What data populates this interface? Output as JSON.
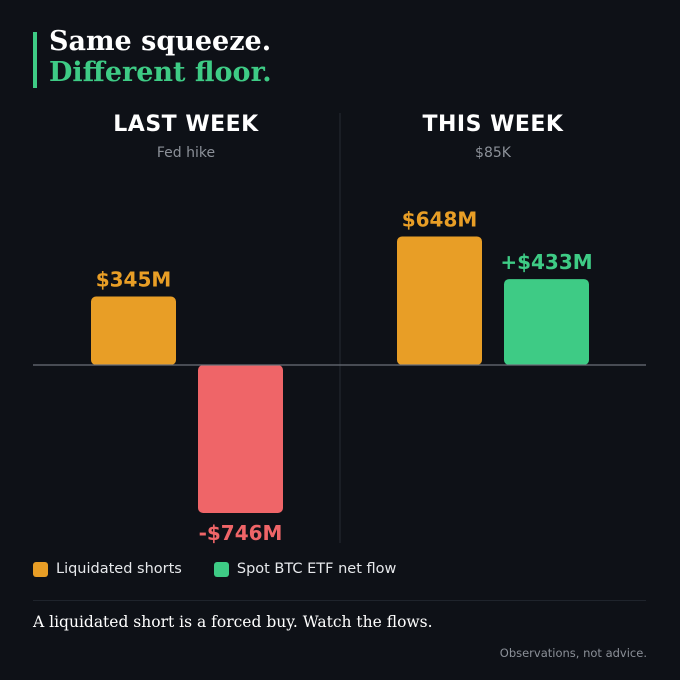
{
  "header": {
    "title_line1": "Same squeeze.",
    "title_line2": "Different floor."
  },
  "colors": {
    "background": "#0e1117",
    "liquidated_shorts": "#e89e26",
    "etf_inflow": "#3ecb85",
    "etf_outflow": "#ef6568",
    "accent": "#3ecb85"
  },
  "chart_data": [
    {
      "type": "bar",
      "panel_title": "LAST WEEK",
      "panel_subtitle": "Fed hike",
      "categories": [
        "Liquidated shorts",
        "Spot BTC ETF net flow"
      ],
      "values": [
        345,
        -746
      ],
      "value_labels": [
        "$345M",
        "-$746M"
      ],
      "unit": "$M",
      "ylim": [
        -746,
        648
      ]
    },
    {
      "type": "bar",
      "panel_title": "THIS WEEK",
      "panel_subtitle": "$85K",
      "categories": [
        "Liquidated shorts",
        "Spot BTC ETF net flow"
      ],
      "values": [
        648,
        433
      ],
      "value_labels": [
        "$648M",
        "+$433M"
      ],
      "unit": "$M",
      "ylim": [
        -746,
        648
      ]
    }
  ],
  "legend": {
    "items": [
      {
        "label": "Liquidated shorts",
        "color": "#e89e26"
      },
      {
        "label": "Spot BTC ETF net flow",
        "color": "#3ecb85"
      }
    ],
    "placement": "bottom-left"
  },
  "caption": "A liquidated short is a forced buy. Watch the flows.",
  "footer": "Observations, not advice."
}
